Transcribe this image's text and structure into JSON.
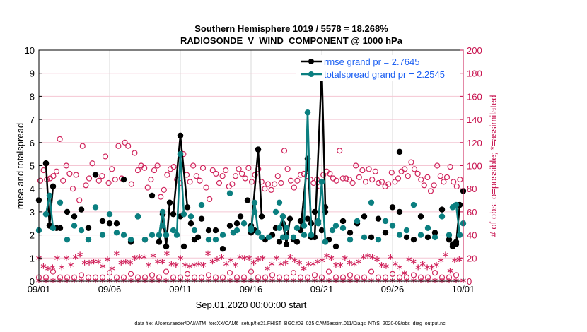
{
  "chart_data": {
    "type": "line",
    "title": "Southern Hemisphere 1019 / 5578 = 18.268%",
    "subtitle": "RADIOSONDE_V_WIND_COMPONENT @ 1000 hPa",
    "xlabel": "Sep.01,2020 00:00:00 start",
    "ylabel": "rmse and totalspread",
    "y2label": "# of obs: o=possible; *=assimilated",
    "footnote": "data file: /Users/raeder/DAI/ATM_forcXX/CAM6_setup/f.e21.FHIST_BGC.f09_025.CAM6assim.011/Diags_NTrS_2020-09/obs_diag_output.nc",
    "xlim": [
      0,
      30
    ],
    "ylim": [
      0,
      10
    ],
    "y2lim": [
      0,
      200
    ],
    "xticks": [
      0,
      5,
      10,
      15,
      20,
      25,
      30
    ],
    "xticklabels": [
      "09/01",
      "09/06",
      "09/11",
      "09/16",
      "09/21",
      "09/26",
      "10/01"
    ],
    "yticks": [
      "0",
      "1",
      "2",
      "3",
      "4",
      "5",
      "6",
      "7",
      "8",
      "9",
      "10"
    ],
    "y2ticks": [
      "0",
      "20",
      "40",
      "60",
      "80",
      "100",
      "120",
      "140",
      "160",
      "180",
      "200"
    ],
    "grid": "x-vertical gray, y2-horizontal pink",
    "legend": {
      "position": "top-right",
      "entries": [
        {
          "label": "rmse grand pr = 2.7645",
          "color": "#000000"
        },
        {
          "label": "totalspread grand pr = 2.2545",
          "color": "#0b7f80"
        }
      ]
    },
    "x_step_days": 0.25,
    "series": [
      {
        "name": "rmse",
        "color": "#000000",
        "points": [
          [
            0,
            3.5
          ],
          [
            0.5,
            5.1
          ],
          [
            0.75,
            2.4
          ],
          [
            1,
            4.1
          ],
          [
            1.25,
            2.3
          ],
          [
            1.5,
            2.3
          ],
          [
            2,
            3.0
          ],
          [
            2.5,
            2.8
          ],
          [
            3,
            3.1
          ],
          [
            3.5,
            2.3
          ],
          [
            4,
            4.6
          ],
          [
            4.5,
            2.6
          ],
          [
            5,
            2.5
          ],
          [
            5.5,
            2.5
          ],
          [
            6,
            4.4
          ],
          [
            6.5,
            1.7
          ],
          [
            7,
            2.8
          ],
          [
            7.5,
            1.8
          ],
          [
            8,
            3.7
          ],
          [
            8.5,
            1.7
          ],
          [
            8.75,
            2.9
          ],
          [
            9,
            1.5
          ],
          [
            9.25,
            3.4
          ],
          [
            9.5,
            2.9
          ],
          [
            10,
            2.8
          ],
          [
            10.25,
            1.5
          ],
          [
            10.75,
            2.5
          ],
          [
            11,
            1.8
          ],
          [
            11.25,
            1.9
          ],
          [
            11.5,
            2.7
          ],
          [
            12,
            2.2
          ],
          [
            12.5,
            2.2
          ],
          [
            13,
            1.4
          ],
          [
            13.5,
            2.4
          ],
          [
            13.75,
            2.1
          ],
          [
            14,
            2.5
          ],
          [
            14.25,
            2.8
          ],
          [
            14.75,
            3.5
          ],
          [
            15,
            2.4
          ],
          [
            15.25,
            2.2
          ],
          [
            16,
            1.8
          ],
          [
            16.5,
            2.0
          ],
          [
            16.75,
            2.3
          ],
          [
            17,
            1.7
          ],
          [
            17.25,
            2.8
          ],
          [
            17.5,
            2.0
          ],
          [
            18,
            1.8
          ],
          [
            18.25,
            1.7
          ],
          [
            18.5,
            2.6
          ],
          [
            19,
            2.7
          ],
          [
            19.25,
            1.9
          ],
          [
            19.5,
            3.0
          ],
          [
            20,
            2.2
          ],
          [
            20.25,
            3.0
          ],
          [
            20.5,
            1.8
          ],
          [
            21,
            1.5
          ],
          [
            21.5,
            2.6
          ],
          [
            22,
            2.1
          ],
          [
            22.5,
            2.5
          ],
          [
            23,
            2.8
          ],
          [
            23.5,
            1.9
          ],
          [
            24,
            2.7
          ],
          [
            24.5,
            2.1
          ],
          [
            25,
            3.2
          ],
          [
            25.5,
            3.0
          ],
          [
            26,
            1.9
          ],
          [
            26.5,
            1.8
          ],
          [
            27,
            2.8
          ],
          [
            27.5,
            1.9
          ],
          [
            28,
            2.1
          ],
          [
            28.5,
            3.1
          ],
          [
            29,
            1.8
          ],
          [
            29.25,
            1.6
          ],
          [
            29.5,
            1.7
          ],
          [
            29.75,
            3.3
          ],
          [
            30,
            3.9
          ]
        ],
        "lines": [
          [
            [
              0.5,
              5.1
            ],
            [
              0.75,
              2.4
            ],
            [
              1,
              4.1
            ]
          ],
          [
            [
              8.5,
              1.7
            ],
            [
              8.75,
              2.9
            ],
            [
              9,
              1.5
            ],
            [
              9.25,
              3.4
            ]
          ],
          [
            [
              9.5,
              2.9
            ],
            [
              10,
              6.3
            ],
            [
              10.5,
              3.2
            ]
          ],
          [
            [
              15,
              2.1
            ],
            [
              15.5,
              5.7
            ],
            [
              15.75,
              2.8
            ]
          ],
          [
            [
              17.25,
              2.5
            ],
            [
              17.5,
              1.6
            ],
            [
              17.75,
              2.7
            ]
          ],
          [
            [
              18.5,
              2.2
            ],
            [
              19,
              5.3
            ],
            [
              19.25,
              2.5
            ]
          ],
          [
            [
              19.5,
              1.9
            ],
            [
              20,
              9.2
            ],
            [
              20.25,
              3.2
            ]
          ],
          [
            [
              29.25,
              1.5
            ],
            [
              29.5,
              1.6
            ],
            [
              29.75,
              3.3
            ]
          ]
        ],
        "peaks": [
          [
            10,
            6.3
          ],
          [
            15.5,
            5.7
          ],
          [
            19,
            5.3
          ],
          [
            20,
            9.2
          ],
          [
            25.5,
            5.6
          ]
        ]
      },
      {
        "name": "totalspread",
        "color": "#0b7f80",
        "points": [
          [
            0,
            2.2
          ],
          [
            0.5,
            2.9
          ],
          [
            0.75,
            3.7
          ],
          [
            1,
            2.3
          ],
          [
            1.5,
            3.4
          ],
          [
            2,
            1.8
          ],
          [
            2.5,
            2.4
          ],
          [
            3,
            2.2
          ],
          [
            3.5,
            1.8
          ],
          [
            4,
            3.2
          ],
          [
            4.5,
            2.0
          ],
          [
            5,
            2.9
          ],
          [
            5.5,
            2.1
          ],
          [
            6,
            2.0
          ],
          [
            6.5,
            1.8
          ],
          [
            7,
            2.8
          ],
          [
            7.5,
            1.8
          ],
          [
            8,
            2.0
          ],
          [
            8.5,
            2.0
          ],
          [
            8.75,
            2.4
          ],
          [
            9,
            2.0
          ],
          [
            9.5,
            2.2
          ],
          [
            10,
            5.5
          ],
          [
            10.25,
            2.9
          ],
          [
            10.75,
            2.8
          ],
          [
            11,
            2.2
          ],
          [
            11.5,
            3.3
          ],
          [
            12,
            1.8
          ],
          [
            12.5,
            1.8
          ],
          [
            13,
            2.0
          ],
          [
            13.5,
            3.8
          ],
          [
            13.75,
            2.1
          ],
          [
            14,
            2.2
          ],
          [
            14.5,
            2.5
          ],
          [
            15,
            2.3
          ],
          [
            15.25,
            3.0
          ],
          [
            15.75,
            1.9
          ],
          [
            16.25,
            1.9
          ],
          [
            16.75,
            3.0
          ],
          [
            17,
            3.4
          ],
          [
            17.25,
            1.9
          ],
          [
            17.5,
            2.3
          ],
          [
            18,
            1.9
          ],
          [
            18.25,
            2.3
          ],
          [
            18.75,
            2.0
          ],
          [
            19,
            7.3
          ],
          [
            19.25,
            2.0
          ],
          [
            19.75,
            2.5
          ],
          [
            20,
            4.3
          ],
          [
            20.25,
            1.7
          ],
          [
            20.75,
            2.2
          ],
          [
            21,
            2.4
          ],
          [
            21.5,
            2.3
          ],
          [
            22,
            1.8
          ],
          [
            22.5,
            2.6
          ],
          [
            23,
            1.9
          ],
          [
            23.5,
            3.4
          ],
          [
            24,
            1.8
          ],
          [
            24.5,
            2.6
          ],
          [
            25,
            2.4
          ],
          [
            25.5,
            2.0
          ],
          [
            26,
            2.2
          ],
          [
            26.5,
            3.3
          ],
          [
            27,
            2.0
          ],
          [
            27.5,
            2.3
          ],
          [
            28,
            1.9
          ],
          [
            28.5,
            2.8
          ],
          [
            29,
            2.0
          ],
          [
            29.25,
            3.2
          ],
          [
            29.5,
            3.3
          ],
          [
            29.75,
            2.0
          ],
          [
            30,
            2.5
          ]
        ],
        "lines": [
          [
            [
              0.5,
              2.9
            ],
            [
              0.75,
              3.7
            ],
            [
              1,
              2.3
            ]
          ],
          [
            [
              8.5,
              2.0
            ],
            [
              8.75,
              3.0
            ],
            [
              9,
              2.0
            ]
          ],
          [
            [
              9.75,
              2.0
            ],
            [
              10,
              5.5
            ],
            [
              10.25,
              2.9
            ]
          ],
          [
            [
              15,
              2.2
            ],
            [
              15.25,
              3.4
            ],
            [
              15.5,
              2.1
            ]
          ],
          [
            [
              17,
              2.3
            ],
            [
              17.25,
              2.8
            ],
            [
              17.5,
              1.9
            ]
          ],
          [
            [
              18.75,
              2.4
            ],
            [
              19,
              7.3
            ],
            [
              19.25,
              2.0
            ]
          ],
          [
            [
              19.75,
              2.6
            ],
            [
              20,
              4.3
            ],
            [
              20.25,
              1.7
            ]
          ],
          [
            [
              29.25,
              3.2
            ],
            [
              29.5,
              3.3
            ],
            [
              29.75,
              2.0
            ]
          ]
        ]
      },
      {
        "name": "obs possible (o)",
        "color": "#d0245c",
        "axis": "right",
        "values": [
          87,
          96,
          88,
          89,
          91,
          95,
          123,
          87,
          100,
          93,
          80,
          92,
          70,
          117,
          83,
          89,
          102,
          92,
          87,
          91,
          108,
          85,
          97,
          88,
          117,
          89,
          120,
          117,
          84,
          111,
          96,
          100,
          98,
          81,
          88,
          96,
          100,
          73,
          79,
          92,
          97,
          99,
          88,
          85,
          110,
          92,
          86,
          100,
          91,
          87,
          98,
          81,
          71,
          96,
          93,
          85,
          91,
          96,
          82,
          84,
          91,
          97,
          93,
          89,
          98,
          86,
          92,
          97,
          86,
          80,
          84,
          79,
          84,
          91,
          85,
          113,
          97,
          87,
          81,
          87,
          92,
          93,
          91,
          88,
          85,
          88,
          82,
          92,
          95,
          93,
          89,
          87,
          113,
          89,
          89,
          88,
          85,
          100,
          90,
          96,
          86,
          97,
          88,
          95,
          85,
          86,
          82,
          84,
          94,
          86,
          89,
          95,
          97,
          91,
          103,
          97,
          93,
          88,
          83,
          90,
          78,
          83,
          100,
          91,
          86,
          90,
          99,
          86,
          82,
          88
        ],
        "low_values": [
          2,
          2,
          7,
          2,
          2,
          2,
          4,
          2,
          2,
          2,
          6,
          2,
          2,
          5,
          2,
          2,
          4,
          2,
          7,
          2,
          2,
          5,
          2,
          2,
          4,
          2,
          2,
          6,
          2,
          2,
          7,
          2,
          2,
          4,
          2,
          2,
          6,
          2,
          2,
          4,
          2,
          7,
          2,
          2,
          4,
          2,
          2,
          7,
          2,
          2,
          5,
          2,
          2,
          4,
          2,
          2,
          6,
          2,
          2,
          4
        ]
      },
      {
        "name": "obs assimilated (*)",
        "color": "#d0245c",
        "axis": "right",
        "values": [
          20,
          13,
          11,
          12,
          20,
          12,
          20,
          14,
          21,
          23,
          16,
          16,
          17,
          17,
          13,
          19,
          11,
          24,
          16,
          17,
          16,
          20,
          21,
          21,
          14,
          22,
          17,
          17,
          24,
          15,
          14,
          20,
          14,
          13,
          14,
          15,
          14,
          24,
          17,
          19,
          21,
          15,
          18,
          14,
          21,
          20,
          20,
          16,
          19,
          20,
          11,
          15,
          20,
          15,
          16,
          21,
          18,
          16,
          11,
          15,
          15,
          17,
          18,
          22,
          20,
          14,
          14,
          20,
          16,
          15,
          17,
          21,
          22,
          21,
          19,
          14,
          13,
          21,
          15,
          12,
          7,
          19,
          17,
          12,
          15,
          12,
          12,
          14,
          18,
          23,
          9,
          18,
          19
        ]
      }
    ]
  }
}
